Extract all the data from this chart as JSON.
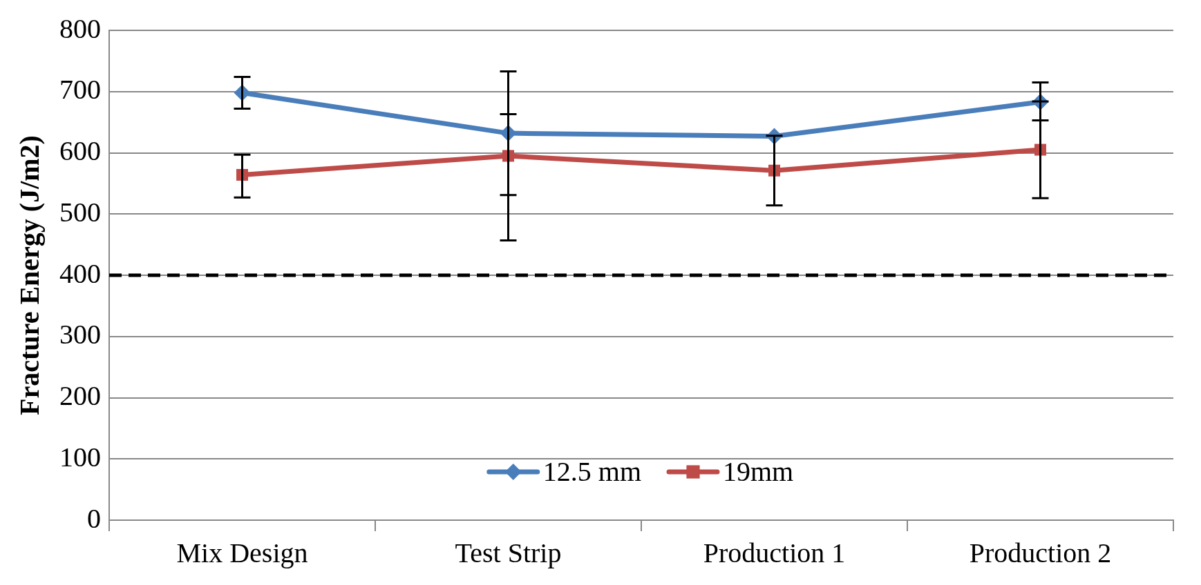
{
  "chart_data": {
    "type": "line",
    "ylabel": "Fracture Energy (J/m2)",
    "categories": [
      "Mix Design",
      "Test Strip",
      "Production 1",
      "Production 2"
    ],
    "series": [
      {
        "name": "12.5 mm",
        "color": "#4a7ebb",
        "marker": "diamond",
        "values": [
          698,
          632,
          627,
          683
        ],
        "errors": [
          [
            672,
            724
          ],
          101,
          null,
          [
            653,
            715
          ]
        ]
      },
      {
        "name": "19mm",
        "color": "#be4b48",
        "marker": "square",
        "values": [
          564,
          595,
          571,
          605
        ],
        "errors": [
          [
            527,
            597
          ],
          [
            457,
            663
          ],
          57,
          79
        ]
      }
    ],
    "ylim": [
      0,
      800
    ],
    "yticks": [
      0,
      100,
      200,
      300,
      400,
      500,
      600,
      700,
      800
    ],
    "grid": "y",
    "legend": "bottom",
    "ref_lines": [
      {
        "axis": "y",
        "value": 400,
        "color": "#000000",
        "line_style": "dashed"
      }
    ]
  }
}
